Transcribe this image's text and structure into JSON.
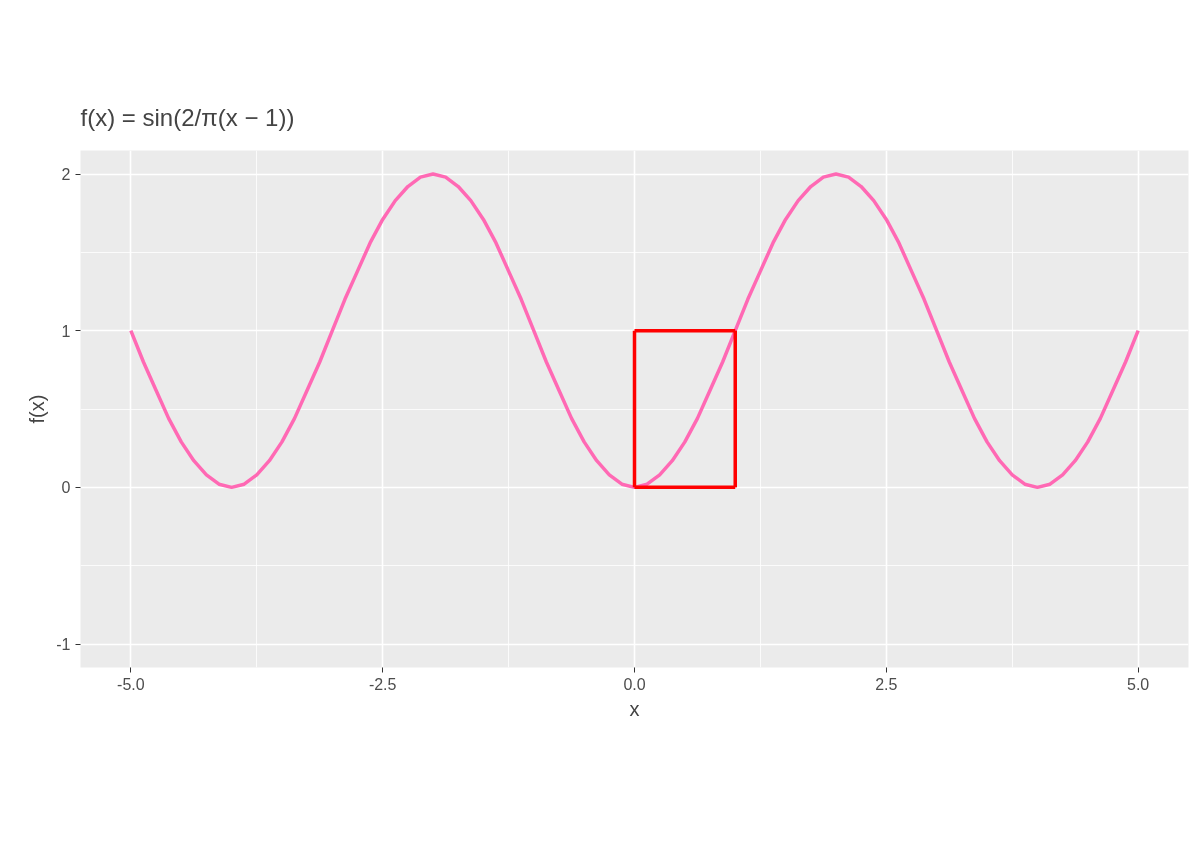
{
  "chart_data": {
    "type": "line",
    "title": "f(x) = sin(2/π(x − 1))",
    "xlabel": "x",
    "ylabel": "f(x)",
    "xlim": [
      -5.5,
      5.5
    ],
    "ylim": [
      -1.15,
      2.15
    ],
    "xticks": [
      {
        "value": -5,
        "label": "-5.0"
      },
      {
        "value": -2.5,
        "label": "-2.5"
      },
      {
        "value": 0,
        "label": "0.0"
      },
      {
        "value": 2.5,
        "label": "2.5"
      },
      {
        "value": 5,
        "label": "5.0"
      }
    ],
    "yticks": [
      -1,
      0,
      1,
      2
    ],
    "grid": true,
    "marker": "none",
    "line_style": "solid",
    "series": [
      {
        "color": "#ff69b4",
        "x": [
          -5,
          -4.875,
          -4.75,
          -4.625,
          -4.5,
          -4.375,
          -4.25,
          -4.125,
          -4,
          -3.875,
          -3.75,
          -3.625,
          -3.5,
          -3.375,
          -3.25,
          -3.125,
          -3,
          -2.875,
          -2.75,
          -2.625,
          -2.5,
          -2.375,
          -2.25,
          -2.125,
          -2,
          -1.875,
          -1.75,
          -1.625,
          -1.5,
          -1.375,
          -1.25,
          -1.125,
          -1,
          -0.875,
          -0.75,
          -0.625,
          -0.5,
          -0.375,
          -0.25,
          -0.125,
          0,
          0.125,
          0.25,
          0.375,
          0.5,
          0.625,
          0.75,
          0.875,
          1,
          1.125,
          1.25,
          1.375,
          1.5,
          1.625,
          1.75,
          1.875,
          2,
          2.125,
          2.25,
          2.375,
          2.5,
          2.625,
          2.75,
          2.875,
          3,
          3.125,
          3.25,
          3.375,
          3.5,
          3.625,
          3.75,
          3.875,
          4,
          4.125,
          4.25,
          4.375,
          4.5,
          4.625,
          4.75,
          4.875,
          5
        ],
        "values": [
          1,
          0.8,
          0.62,
          0.44,
          0.29,
          0.17,
          0.08,
          0.02,
          0,
          0.02,
          0.08,
          0.17,
          0.29,
          0.44,
          0.62,
          0.8,
          1,
          1.2,
          1.38,
          1.56,
          1.71,
          1.83,
          1.92,
          1.98,
          2,
          1.98,
          1.92,
          1.83,
          1.71,
          1.56,
          1.38,
          1.2,
          1,
          0.8,
          0.62,
          0.44,
          0.29,
          0.17,
          0.08,
          0.02,
          0,
          0.02,
          0.08,
          0.17,
          0.29,
          0.44,
          0.62,
          0.8,
          1,
          1.2,
          1.38,
          1.56,
          1.71,
          1.83,
          1.92,
          1.98,
          2,
          1.98,
          1.92,
          1.83,
          1.71,
          1.56,
          1.38,
          1.2,
          1,
          0.8,
          0.62,
          0.44,
          0.29,
          0.17,
          0.08,
          0.02,
          0,
          0.02,
          0.08,
          0.17,
          0.29,
          0.44,
          0.62,
          0.8,
          1
        ]
      },
      {
        "color": "#ff0000",
        "x": [
          0,
          0
        ],
        "values": [
          0,
          1
        ]
      },
      {
        "color": "#ff0000",
        "x": [
          0,
          1
        ],
        "values": [
          1,
          1
        ]
      },
      {
        "color": "#ff0000",
        "x": [
          1,
          1
        ],
        "values": [
          1,
          0
        ]
      },
      {
        "color": "#ff0000",
        "x": [
          1,
          0
        ],
        "values": [
          0,
          0
        ]
      }
    ]
  }
}
